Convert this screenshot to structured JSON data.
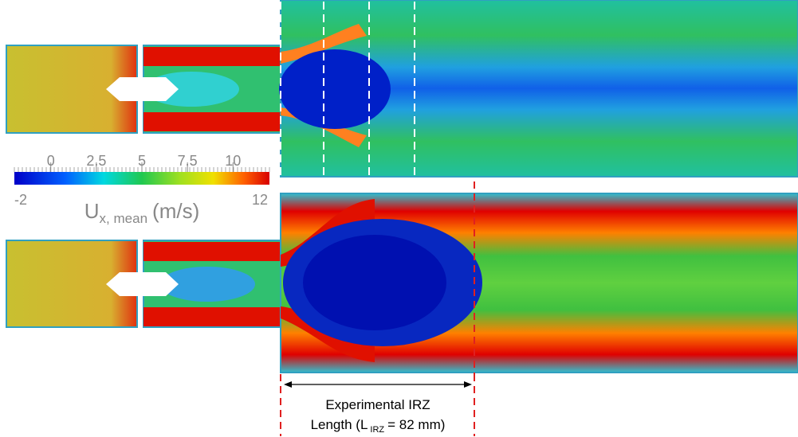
{
  "colorbar": {
    "lim": [
      -2,
      12
    ],
    "ticks": [
      0,
      2.5,
      5,
      7.5,
      10
    ],
    "label": "U",
    "label_subscript": "x, mean",
    "label_unit": "(m/s)"
  },
  "annotation": {
    "line1": "Experimental IRZ",
    "line2_prefix": "Length (L",
    "line2_subscript": "IRZ",
    "line2_suffix": "= 82 mm)"
  }
}
